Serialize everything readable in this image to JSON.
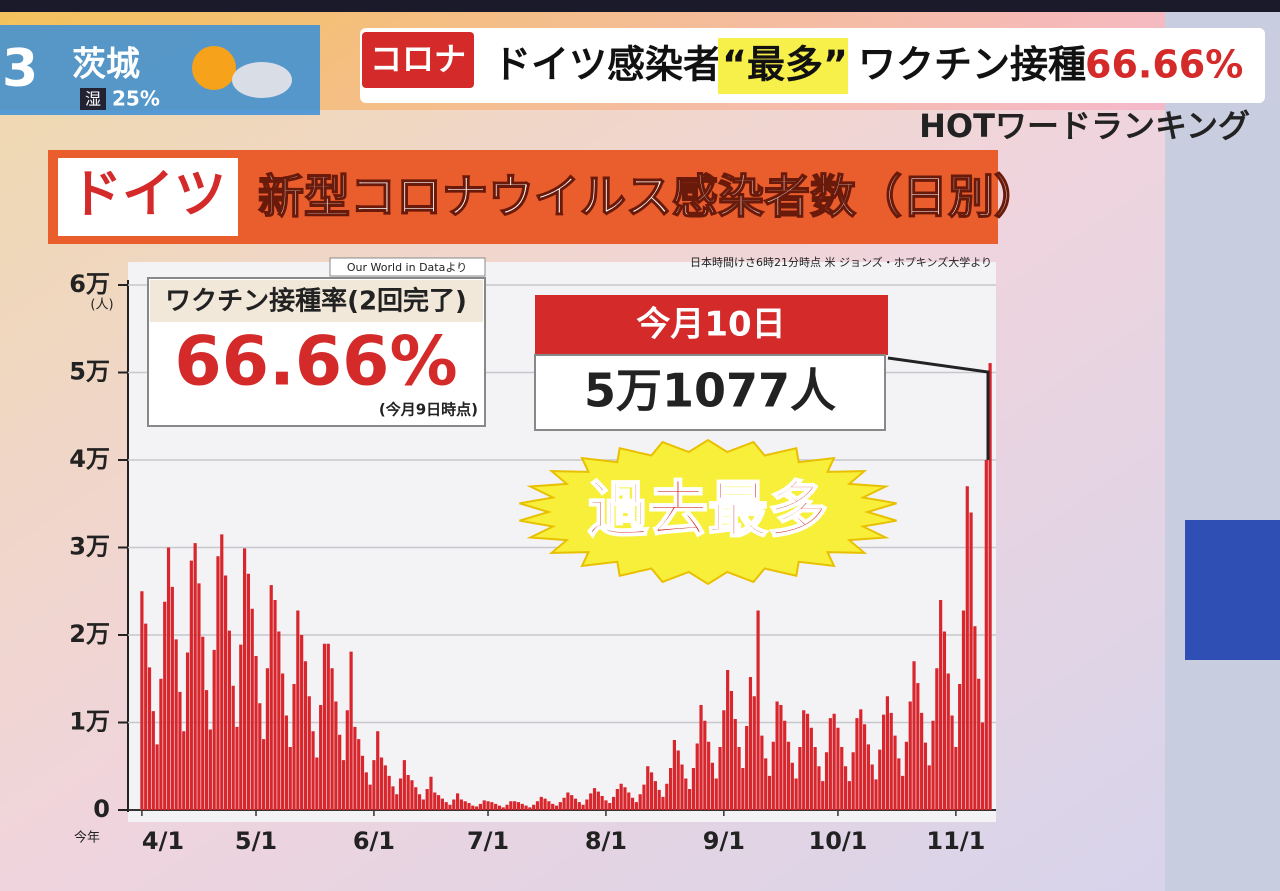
{
  "header": {
    "channel_weather": {
      "place": "茨城",
      "humidity_label": "湿",
      "humidity": "25%"
    },
    "tag": "コロナ",
    "headline": [
      "ドイツ感染者",
      "“最多”",
      "ワクチン接種",
      "66.66%"
    ],
    "ranking": "HOTワードランキング"
  },
  "chart_data": {
    "type": "bar",
    "country_tag": "ドイツ",
    "title": "新型コロナウイルス感染者数（日別）",
    "source": "日本時間けさ6時21分時点 米 ジョンズ・ホプキンズ大学より",
    "y_unit": "(人)",
    "x_prefix": "今年",
    "vaccine_box": {
      "source": "Our World in Dataより",
      "title": "ワクチン接種率(2回完了)",
      "value": "66.66%",
      "note": "(今月9日時点)"
    },
    "callout": {
      "date": "今月10日",
      "value": "5万1077人"
    },
    "burst": "過去最多",
    "color": "#d8262c",
    "ylim": [
      0,
      60000
    ],
    "yticks": [
      0,
      {
        "value": 10000,
        "label": "1万"
      },
      {
        "value": 20000,
        "label": "2万"
      },
      {
        "value": 30000,
        "label": "3万"
      },
      {
        "value": 40000,
        "label": "4万"
      },
      {
        "value": 50000,
        "label": "5万"
      },
      {
        "value": 60000,
        "label": "6万"
      }
    ],
    "grid": true,
    "categories": [
      "4/1",
      null,
      null,
      null,
      null,
      null,
      null,
      null,
      null,
      null,
      null,
      null,
      null,
      null,
      null,
      null,
      null,
      null,
      null,
      null,
      null,
      null,
      null,
      null,
      null,
      null,
      null,
      null,
      null,
      null,
      "5/1",
      null,
      null,
      null,
      null,
      null,
      null,
      null,
      null,
      null,
      null,
      null,
      null,
      null,
      null,
      null,
      null,
      null,
      null,
      null,
      null,
      null,
      null,
      null,
      null,
      null,
      null,
      null,
      null,
      null,
      null,
      "6/1",
      null,
      null,
      null,
      null,
      null,
      null,
      null,
      null,
      null,
      null,
      null,
      null,
      null,
      null,
      null,
      null,
      null,
      null,
      null,
      null,
      null,
      null,
      null,
      null,
      null,
      null,
      null,
      null,
      null,
      "7/1",
      null,
      null,
      null,
      null,
      null,
      null,
      null,
      null,
      null,
      null,
      null,
      null,
      null,
      null,
      null,
      null,
      null,
      null,
      null,
      null,
      null,
      null,
      null,
      null,
      null,
      null,
      null,
      null,
      null,
      null,
      "8/1",
      null,
      null,
      null,
      null,
      null,
      null,
      null,
      null,
      null,
      null,
      null,
      null,
      null,
      null,
      null,
      null,
      null,
      null,
      null,
      null,
      null,
      null,
      null,
      null,
      null,
      null,
      null,
      null,
      null,
      null,
      "9/1",
      null,
      null,
      null,
      null,
      null,
      null,
      null,
      null,
      null,
      null,
      null,
      null,
      null,
      null,
      null,
      null,
      null,
      null,
      null,
      null,
      null,
      null,
      null,
      null,
      null,
      null,
      null,
      null,
      null,
      "10/1",
      null,
      null,
      null,
      null,
      null,
      null,
      null,
      null,
      null,
      null,
      null,
      null,
      null,
      null,
      null,
      null,
      null,
      null,
      null,
      null,
      null,
      null,
      null,
      null,
      null,
      null,
      null,
      null,
      null,
      null,
      "11/1",
      null,
      null,
      null,
      null,
      null,
      null,
      null,
      null,
      null
    ],
    "values": [
      25000,
      21300,
      16300,
      11300,
      7500,
      15000,
      23800,
      30000,
      25500,
      19500,
      13500,
      9000,
      18000,
      28500,
      30500,
      25900,
      19800,
      13700,
      9200,
      18300,
      29000,
      31500,
      26800,
      20500,
      14200,
      9500,
      18900,
      29900,
      27000,
      23000,
      17600,
      12200,
      8100,
      16200,
      25700,
      24000,
      20400,
      15600,
      10800,
      7200,
      14400,
      22800,
      20000,
      17000,
      13000,
      9000,
      6000,
      12000,
      19000,
      19000,
      16200,
      12400,
      8600,
      5700,
      11400,
      18100,
      9500,
      8100,
      6200,
      4300,
      2900,
      5700,
      9000,
      6000,
      5100,
      3900,
      2700,
      1800,
      3600,
      5700,
      4000,
      3400,
      2600,
      1800,
      1200,
      2400,
      3800,
      2000,
      1700,
      1300,
      900,
      600,
      1200,
      1900,
      1200,
      1000,
      800,
      500,
      400,
      700,
      1100,
      1000,
      900,
      700,
      500,
      300,
      600,
      1000,
      1000,
      900,
      700,
      500,
      300,
      600,
      1000,
      1500,
      1300,
      1000,
      700,
      500,
      900,
      1400,
      2000,
      1700,
      1300,
      900,
      600,
      1200,
      1900,
      2500,
      2100,
      1600,
      1100,
      800,
      1500,
      2400,
      3000,
      2600,
      2000,
      1400,
      900,
      1800,
      2900,
      5000,
      4300,
      3300,
      2300,
      1500,
      3000,
      4800,
      8000,
      6800,
      5200,
      3600,
      2400,
      4800,
      7600,
      12000,
      10200,
      7800,
      5400,
      3600,
      7200,
      11400,
      16000,
      13600,
      10400,
      7200,
      4800,
      9600,
      15200,
      13000,
      22800,
      8500,
      5900,
      3900,
      7800,
      12400,
      12000,
      10200,
      7800,
      5400,
      3600,
      7200,
      11400,
      11000,
      9400,
      7200,
      5000,
      3300,
      6600,
      10500,
      11000,
      9400,
      7200,
      5000,
      3300,
      6600,
      10500,
      11500,
      9800,
      7500,
      5200,
      3500,
      6900,
      10900,
      13000,
      11100,
      8500,
      5900,
      3900,
      7800,
      12400,
      17000,
      14500,
      11100,
      7700,
      5100,
      10200,
      16200,
      24000,
      20400,
      15600,
      10800,
      7200,
      14400,
      22800,
      37000,
      34000,
      21000,
      15000,
      10000,
      40000,
      51077
    ]
  }
}
